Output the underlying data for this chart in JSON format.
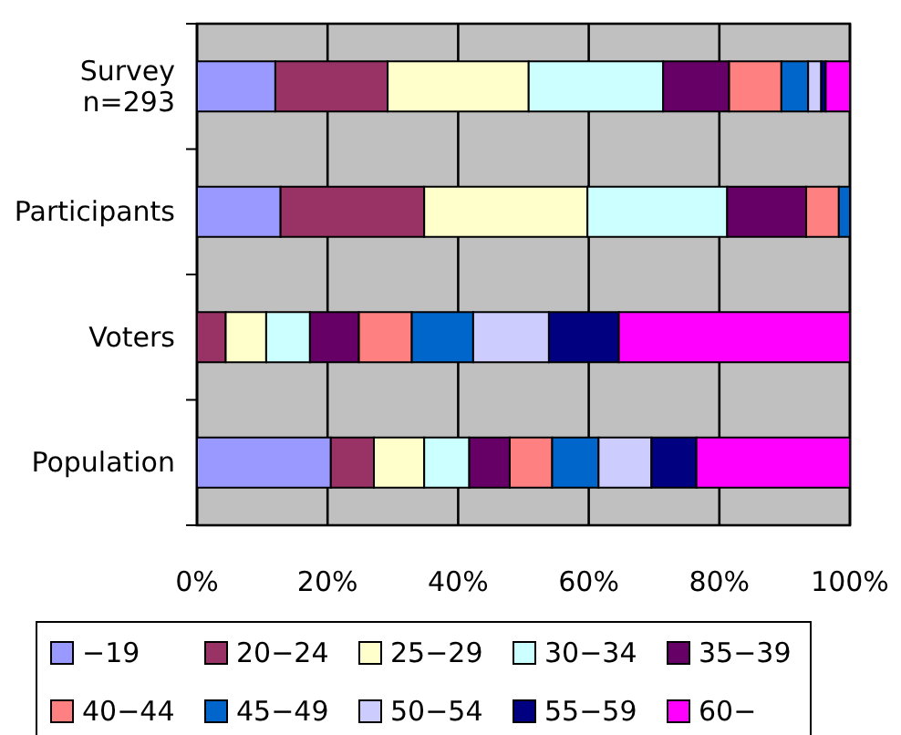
{
  "chart_data": {
    "type": "bar",
    "orientation": "horizontal",
    "stacked": true,
    "categories": [
      "Survey\nn=293",
      "Participants",
      "Voters",
      "Population"
    ],
    "xlim": [
      0,
      100
    ],
    "xticks": [
      {
        "value": 0,
        "label": "0%"
      },
      {
        "value": 20,
        "label": "20%"
      },
      {
        "value": 40,
        "label": "40%"
      },
      {
        "value": 60,
        "label": "60%"
      },
      {
        "value": 80,
        "label": "80%"
      },
      {
        "value": 100,
        "label": "100%"
      }
    ],
    "grid": "x",
    "legend": "bottom",
    "series": [
      {
        "name": "−19",
        "color": "#9999ff",
        "values": [
          12.0,
          12.8,
          0,
          20.5
        ]
      },
      {
        "name": "20−24",
        "color": "#993366",
        "values": [
          17.2,
          22.0,
          4.4,
          6.6
        ]
      },
      {
        "name": "25−29",
        "color": "#ffffcc",
        "values": [
          21.6,
          25.0,
          6.2,
          7.7
        ]
      },
      {
        "name": "30−34",
        "color": "#ccffff",
        "values": [
          20.6,
          21.4,
          6.7,
          6.9
        ]
      },
      {
        "name": "35−39",
        "color": "#660066",
        "values": [
          10.1,
          12.1,
          7.5,
          6.2
        ]
      },
      {
        "name": "40−44",
        "color": "#ff8080",
        "values": [
          8.0,
          5.0,
          8.1,
          6.5
        ]
      },
      {
        "name": "45−49",
        "color": "#0066cc",
        "values": [
          4.1,
          1.7,
          9.4,
          7.1
        ]
      },
      {
        "name": "50−54",
        "color": "#ccccff",
        "values": [
          2.0,
          0,
          11.6,
          8.1
        ]
      },
      {
        "name": "55−59",
        "color": "#000080",
        "values": [
          0.7,
          0,
          10.7,
          6.9
        ]
      },
      {
        "name": "60−",
        "color": "#ff00ff",
        "values": [
          3.7,
          0,
          35.4,
          23.5
        ]
      }
    ]
  }
}
